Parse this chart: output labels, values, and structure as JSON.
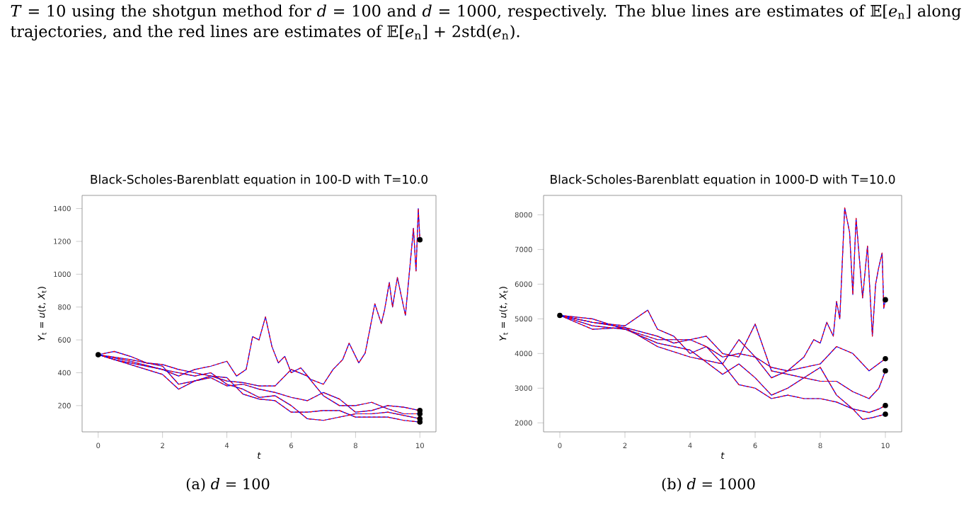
{
  "chart_data": [
    {
      "type": "line",
      "title": "Black-Scholes-Barenblatt equation in 100-D with T=10.0",
      "xlabel": "*t*",
      "ylabel": "*Y*$_{t}$ = *u*(*t*, *X*$_{t}$)",
      "xlim": [
        -0.5,
        10.5
      ],
      "ylim": [
        40,
        1480
      ],
      "xticks": [
        0,
        2,
        4,
        6,
        8,
        10
      ],
      "yticks": [
        200,
        400,
        600,
        800,
        1000,
        1200,
        1400
      ],
      "marker": "none",
      "annotations": [
        "*T* = 10 using the shotgun method for *d* = 100 and *d* = 1000, respectively. The blue lines are estimates of 𝔼[*e*$_{n}$] along trajectories, and the red lines are estimates of 𝔼[*e*$_{n}$] + 2std(*e*$_{n}$).",
        "(a) *d* = 100"
      ],
      "series": [
        {
          "color": "#0000ff",
          "line_style": "solid",
          "x": [
            0,
            0.5,
            1,
            1.5,
            2,
            2.5,
            3,
            3.5,
            4,
            4.3,
            4.6,
            4.8,
            5,
            5.2,
            5.4,
            5.6,
            5.8,
            6,
            6.3,
            6.6,
            7,
            7.3,
            7.6,
            7.8,
            8.1,
            8.3,
            8.6,
            8.8,
            8.9,
            9.05,
            9.15,
            9.3,
            9.55,
            9.8,
            9.88,
            9.95,
            10
          ],
          "values": [
            510,
            480,
            460,
            440,
            420,
            380,
            420,
            440,
            470,
            380,
            420,
            620,
            600,
            740,
            560,
            460,
            500,
            400,
            430,
            360,
            330,
            420,
            480,
            580,
            460,
            520,
            820,
            700,
            780,
            950,
            800,
            980,
            750,
            1280,
            1020,
            1400,
            1210
          ]
        },
        {
          "color": "#ff0000",
          "line_style": "dashed",
          "x": [
            0,
            0.5,
            1,
            1.5,
            2,
            2.5,
            3,
            3.5,
            4,
            4.3,
            4.6,
            4.8,
            5,
            5.2,
            5.4,
            5.6,
            5.8,
            6,
            6.3,
            6.6,
            7,
            7.3,
            7.6,
            7.8,
            8.1,
            8.3,
            8.6,
            8.8,
            8.9,
            9.05,
            9.15,
            9.3,
            9.55,
            9.8,
            9.88,
            9.95,
            10
          ],
          "values": [
            510,
            480,
            460,
            440,
            420,
            380,
            420,
            440,
            470,
            380,
            420,
            620,
            600,
            740,
            560,
            460,
            500,
            400,
            430,
            360,
            330,
            420,
            480,
            580,
            460,
            520,
            820,
            700,
            780,
            950,
            800,
            980,
            750,
            1280,
            1020,
            1400,
            1210
          ]
        },
        {
          "color": "#0000ff",
          "line_style": "solid",
          "x": [
            0,
            1,
            2,
            3,
            3.5,
            4,
            4.5,
            5,
            5.5,
            6,
            6.5,
            7,
            7.5,
            8,
            8.5,
            9,
            9.5,
            10
          ],
          "values": [
            510,
            470,
            420,
            380,
            400,
            330,
            300,
            250,
            260,
            200,
            120,
            110,
            130,
            150,
            150,
            160,
            140,
            120
          ]
        },
        {
          "color": "#ff0000",
          "line_style": "dashed",
          "x": [
            0,
            1,
            2,
            3,
            3.5,
            4,
            4.5,
            5,
            5.5,
            6,
            6.5,
            7,
            7.5,
            8,
            8.5,
            9,
            9.5,
            10
          ],
          "values": [
            510,
            470,
            420,
            380,
            400,
            330,
            300,
            250,
            260,
            200,
            120,
            110,
            130,
            150,
            150,
            160,
            140,
            120
          ]
        },
        {
          "color": "#0000ff",
          "line_style": "solid",
          "x": [
            0,
            1,
            2,
            2.5,
            3,
            3.5,
            4,
            4.5,
            5,
            5.5,
            6,
            6.5,
            7,
            7.5,
            8,
            8.5,
            9,
            9.5,
            10
          ],
          "values": [
            510,
            480,
            440,
            330,
            350,
            370,
            320,
            330,
            300,
            280,
            250,
            230,
            280,
            240,
            160,
            170,
            200,
            190,
            170
          ]
        },
        {
          "color": "#ff0000",
          "line_style": "dashed",
          "x": [
            0,
            1,
            2,
            2.5,
            3,
            3.5,
            4,
            4.5,
            5,
            5.5,
            6,
            6.5,
            7,
            7.5,
            8,
            8.5,
            9,
            9.5,
            10
          ],
          "values": [
            510,
            480,
            440,
            330,
            350,
            370,
            320,
            330,
            300,
            280,
            250,
            230,
            280,
            240,
            160,
            170,
            200,
            190,
            170
          ]
        },
        {
          "color": "#0000ff",
          "line_style": "solid",
          "x": [
            0,
            1,
            2,
            2.5,
            3,
            3.5,
            4,
            4.5,
            5,
            5.5,
            6,
            6.5,
            7,
            7.5,
            8,
            8.5,
            9,
            9.5,
            10
          ],
          "values": [
            510,
            450,
            390,
            300,
            350,
            380,
            350,
            340,
            320,
            320,
            420,
            380,
            260,
            200,
            200,
            220,
            180,
            150,
            150
          ]
        },
        {
          "color": "#ff0000",
          "line_style": "dashed",
          "x": [
            0,
            1,
            2,
            2.5,
            3,
            3.5,
            4,
            4.5,
            5,
            5.5,
            6,
            6.5,
            7,
            7.5,
            8,
            8.5,
            9,
            9.5,
            10
          ],
          "values": [
            510,
            450,
            390,
            300,
            350,
            380,
            350,
            340,
            320,
            320,
            420,
            380,
            260,
            200,
            200,
            220,
            180,
            150,
            150
          ]
        },
        {
          "color": "#0000ff",
          "line_style": "solid",
          "x": [
            0,
            0.5,
            1,
            1.5,
            2,
            2.5,
            3,
            3.5,
            4,
            4.5,
            5,
            5.5,
            6,
            6.5,
            7,
            7.5,
            8,
            8.5,
            9,
            9.5,
            10
          ],
          "values": [
            510,
            530,
            500,
            460,
            450,
            420,
            400,
            380,
            370,
            270,
            240,
            230,
            160,
            160,
            170,
            170,
            130,
            130,
            130,
            110,
            100
          ]
        },
        {
          "color": "#ff0000",
          "line_style": "dashed",
          "x": [
            0,
            0.5,
            1,
            1.5,
            2,
            2.5,
            3,
            3.5,
            4,
            4.5,
            5,
            5.5,
            6,
            6.5,
            7,
            7.5,
            8,
            8.5,
            9,
            9.5,
            10
          ],
          "values": [
            510,
            530,
            500,
            460,
            450,
            420,
            400,
            380,
            370,
            270,
            240,
            230,
            160,
            160,
            170,
            170,
            130,
            130,
            130,
            110,
            100
          ]
        },
        {
          "type": "scatter",
          "color": "#000000",
          "marker": "circle",
          "x": [
            0,
            10,
            10,
            10,
            10,
            10
          ],
          "values": [
            510,
            1210,
            170,
            150,
            120,
            100
          ]
        }
      ]
    },
    {
      "type": "line",
      "title": "Black-Scholes-Barenblatt equation in 1000-D with T=10.0",
      "xlabel": "*t*",
      "ylabel": "*Y*$_{t}$ = *u*(*t*, *X*$_{t}$)",
      "xlim": [
        -0.5,
        10.5
      ],
      "ylim": [
        1740,
        8560
      ],
      "xticks": [
        0,
        2,
        4,
        6,
        8,
        10
      ],
      "yticks": [
        2000,
        3000,
        4000,
        5000,
        6000,
        7000,
        8000
      ],
      "marker": "none",
      "annotations": [
        "(b) *d* = 1000"
      ],
      "series": [
        {
          "color": "#0000ff",
          "line_style": "solid",
          "x": [
            0,
            1,
            2,
            3,
            3.5,
            4,
            4.5,
            5,
            5.5,
            6,
            6.5,
            7,
            7.5,
            7.8,
            8,
            8.2,
            8.4,
            8.5,
            8.6,
            8.75,
            8.9,
            9.0,
            9.1,
            9.3,
            9.45,
            9.6,
            9.7,
            9.8,
            9.9,
            9.95,
            10
          ],
          "values": [
            5100,
            4900,
            4750,
            4500,
            4300,
            4400,
            4200,
            3900,
            4000,
            3900,
            3600,
            3500,
            3900,
            4400,
            4300,
            4900,
            4500,
            5500,
            5000,
            8200,
            7500,
            5700,
            7900,
            5600,
            7100,
            4500,
            6000,
            6500,
            6900,
            5300,
            5550
          ]
        },
        {
          "color": "#ff0000",
          "line_style": "dashed",
          "x": [
            0,
            1,
            2,
            3,
            3.5,
            4,
            4.5,
            5,
            5.5,
            6,
            6.5,
            7,
            7.5,
            7.8,
            8,
            8.2,
            8.4,
            8.5,
            8.6,
            8.75,
            8.9,
            9.0,
            9.1,
            9.3,
            9.45,
            9.6,
            9.7,
            9.8,
            9.9,
            9.95,
            10
          ],
          "values": [
            5100,
            4900,
            4750,
            4500,
            4300,
            4400,
            4200,
            3900,
            4000,
            3900,
            3600,
            3500,
            3900,
            4400,
            4300,
            4900,
            4500,
            5500,
            5000,
            8200,
            7500,
            5700,
            7900,
            5600,
            7100,
            4500,
            6000,
            6500,
            6900,
            5300,
            5550
          ]
        },
        {
          "color": "#0000ff",
          "line_style": "solid",
          "x": [
            0,
            1,
            2,
            2.7,
            3,
            3.5,
            4,
            4.5,
            5,
            5.5,
            6,
            6.5,
            7,
            7.5,
            8,
            8.5,
            9,
            9.5,
            10
          ],
          "values": [
            5100,
            4900,
            4800,
            5250,
            4700,
            4500,
            4000,
            4200,
            3700,
            4400,
            3900,
            3300,
            3500,
            3600,
            3700,
            4200,
            4000,
            3500,
            3850
          ]
        },
        {
          "color": "#ff0000",
          "line_style": "dashed",
          "x": [
            0,
            1,
            2,
            2.7,
            3,
            3.5,
            4,
            4.5,
            5,
            5.5,
            6,
            6.5,
            7,
            7.5,
            8,
            8.5,
            9,
            9.5,
            10
          ],
          "values": [
            5100,
            4900,
            4800,
            5250,
            4700,
            4500,
            4000,
            4200,
            3700,
            4400,
            3900,
            3300,
            3500,
            3600,
            3700,
            4200,
            4000,
            3500,
            3850
          ]
        },
        {
          "color": "#0000ff",
          "line_style": "solid",
          "x": [
            0,
            1,
            2,
            3,
            4,
            4.5,
            5,
            5.5,
            6,
            6.5,
            7,
            7.5,
            8,
            8.5,
            9,
            9.5,
            9.8,
            10
          ],
          "values": [
            5100,
            5000,
            4700,
            4400,
            4400,
            4500,
            4000,
            3900,
            4850,
            3500,
            3400,
            3300,
            3200,
            3200,
            2900,
            2700,
            3000,
            3500
          ]
        },
        {
          "color": "#ff0000",
          "line_style": "dashed",
          "x": [
            0,
            1,
            2,
            3,
            4,
            4.5,
            5,
            5.5,
            6,
            6.5,
            7,
            7.5,
            8,
            8.5,
            9,
            9.5,
            9.8,
            10
          ],
          "values": [
            5100,
            5000,
            4700,
            4400,
            4400,
            4500,
            4000,
            3900,
            4850,
            3500,
            3400,
            3300,
            3200,
            3200,
            2900,
            2700,
            3000,
            3500
          ]
        },
        {
          "color": "#0000ff",
          "line_style": "solid",
          "x": [
            0,
            1,
            2,
            3,
            4,
            5,
            5.5,
            6,
            6.5,
            7,
            7.5,
            8,
            8.5,
            9,
            9.5,
            9.8,
            10
          ],
          "values": [
            5100,
            4800,
            4700,
            4300,
            4100,
            3400,
            3700,
            3300,
            2800,
            3000,
            3300,
            3600,
            2800,
            2400,
            2300,
            2400,
            2500
          ]
        },
        {
          "color": "#ff0000",
          "line_style": "dashed",
          "x": [
            0,
            1,
            2,
            3,
            4,
            5,
            5.5,
            6,
            6.5,
            7,
            7.5,
            8,
            8.5,
            9,
            9.5,
            9.8,
            10
          ],
          "values": [
            5100,
            4800,
            4700,
            4300,
            4100,
            3400,
            3700,
            3300,
            2800,
            3000,
            3300,
            3600,
            2800,
            2400,
            2300,
            2400,
            2500
          ]
        },
        {
          "color": "#0000ff",
          "line_style": "solid",
          "x": [
            0,
            1,
            2,
            3,
            4,
            5,
            5.5,
            6,
            6.5,
            7,
            7.5,
            8,
            8.5,
            9,
            9.3,
            9.6,
            10
          ],
          "values": [
            5100,
            4700,
            4750,
            4200,
            3900,
            3700,
            3100,
            3000,
            2700,
            2800,
            2700,
            2700,
            2600,
            2400,
            2100,
            2150,
            2250
          ]
        },
        {
          "color": "#ff0000",
          "line_style": "dashed",
          "x": [
            0,
            1,
            2,
            3,
            4,
            5,
            5.5,
            6,
            6.5,
            7,
            7.5,
            8,
            8.5,
            9,
            9.3,
            9.6,
            10
          ],
          "values": [
            5100,
            4700,
            4750,
            4200,
            3900,
            3700,
            3100,
            3000,
            2700,
            2800,
            2700,
            2700,
            2600,
            2400,
            2100,
            2150,
            2250
          ]
        },
        {
          "type": "scatter",
          "color": "#000000",
          "marker": "circle",
          "x": [
            0,
            10,
            10,
            10,
            10,
            10
          ],
          "values": [
            5100,
            5550,
            3850,
            3500,
            2500,
            2250
          ]
        }
      ]
    }
  ]
}
